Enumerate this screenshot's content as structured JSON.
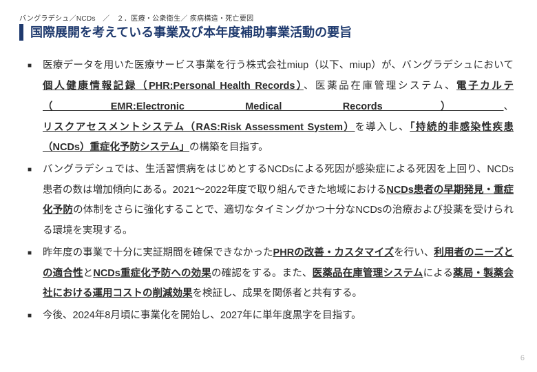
{
  "breadcrumb": "バングラデシュ／NCDs　／　２．医療・公衆衛生／ 疾病構造・死亡要因",
  "title": "国際展開を考えている事業及び本年度補助事業活動の要旨",
  "bullets": [
    {
      "segments": [
        {
          "t": "医療データを用いた医療サービス事業を行う株式会社miup（以下、miup）が、バングラデシュにおいて",
          "s": ""
        },
        {
          "t": "個人健康情報記録（PHR:Personal Health Records）",
          "s": "ub"
        },
        {
          "t": "、医薬品在庫管理システム、",
          "s": ""
        },
        {
          "t": "電子カルテ（EMR:Electronic Medical Records）",
          "s": "ub"
        },
        {
          "t": "、",
          "s": ""
        },
        {
          "t": "リスクアセスメントシステム（RAS:Risk Assessment System）",
          "s": "ub"
        },
        {
          "t": "を導入し、",
          "s": ""
        },
        {
          "t": "「持続的非感染性疾患（NCDs）重症化予防システム」",
          "s": "ub"
        },
        {
          "t": "の構築を目指す。",
          "s": ""
        }
      ]
    },
    {
      "segments": [
        {
          "t": "バングラデシュでは、生活習慣病をはじめとするNCDsによる死因が感染症による死因を上回り、NCDs患者の数は増加傾向にある。2021～2022年度で取り組んできた地域における",
          "s": ""
        },
        {
          "t": "NCDs患者の早期発見・重症化予防",
          "s": "ub"
        },
        {
          "t": "の体制をさらに強化することで、適切なタイミングかつ十分なNCDsの治療および投薬を受けられる環境を実現する。",
          "s": ""
        }
      ]
    },
    {
      "segments": [
        {
          "t": "昨年度の事業で十分に実証期間を確保できなかった",
          "s": ""
        },
        {
          "t": "PHRの改善・カスタマイズ",
          "s": "ub"
        },
        {
          "t": "を行い、",
          "s": ""
        },
        {
          "t": "利用者のニーズとの適合性",
          "s": "ub"
        },
        {
          "t": "と",
          "s": ""
        },
        {
          "t": "NCDs重症化予防への効果",
          "s": "ub"
        },
        {
          "t": "の確認をする。また、",
          "s": ""
        },
        {
          "t": "医薬品在庫管理システム",
          "s": "ub"
        },
        {
          "t": "による",
          "s": ""
        },
        {
          "t": "薬局・製薬会社における運用コストの削減効果",
          "s": "ub"
        },
        {
          "t": "を検証し、成果を関係者と共有する。",
          "s": ""
        }
      ]
    },
    {
      "segments": [
        {
          "t": "今後、2024年8月頃に事業化を開始し、2027年に単年度黒字を目指す。",
          "s": ""
        }
      ]
    }
  ],
  "page_number": "6",
  "colors": {
    "title": "#1f3a6e",
    "body": "#2b2b2b",
    "page_num": "#b8b8b8",
    "background": "#ffffff"
  }
}
